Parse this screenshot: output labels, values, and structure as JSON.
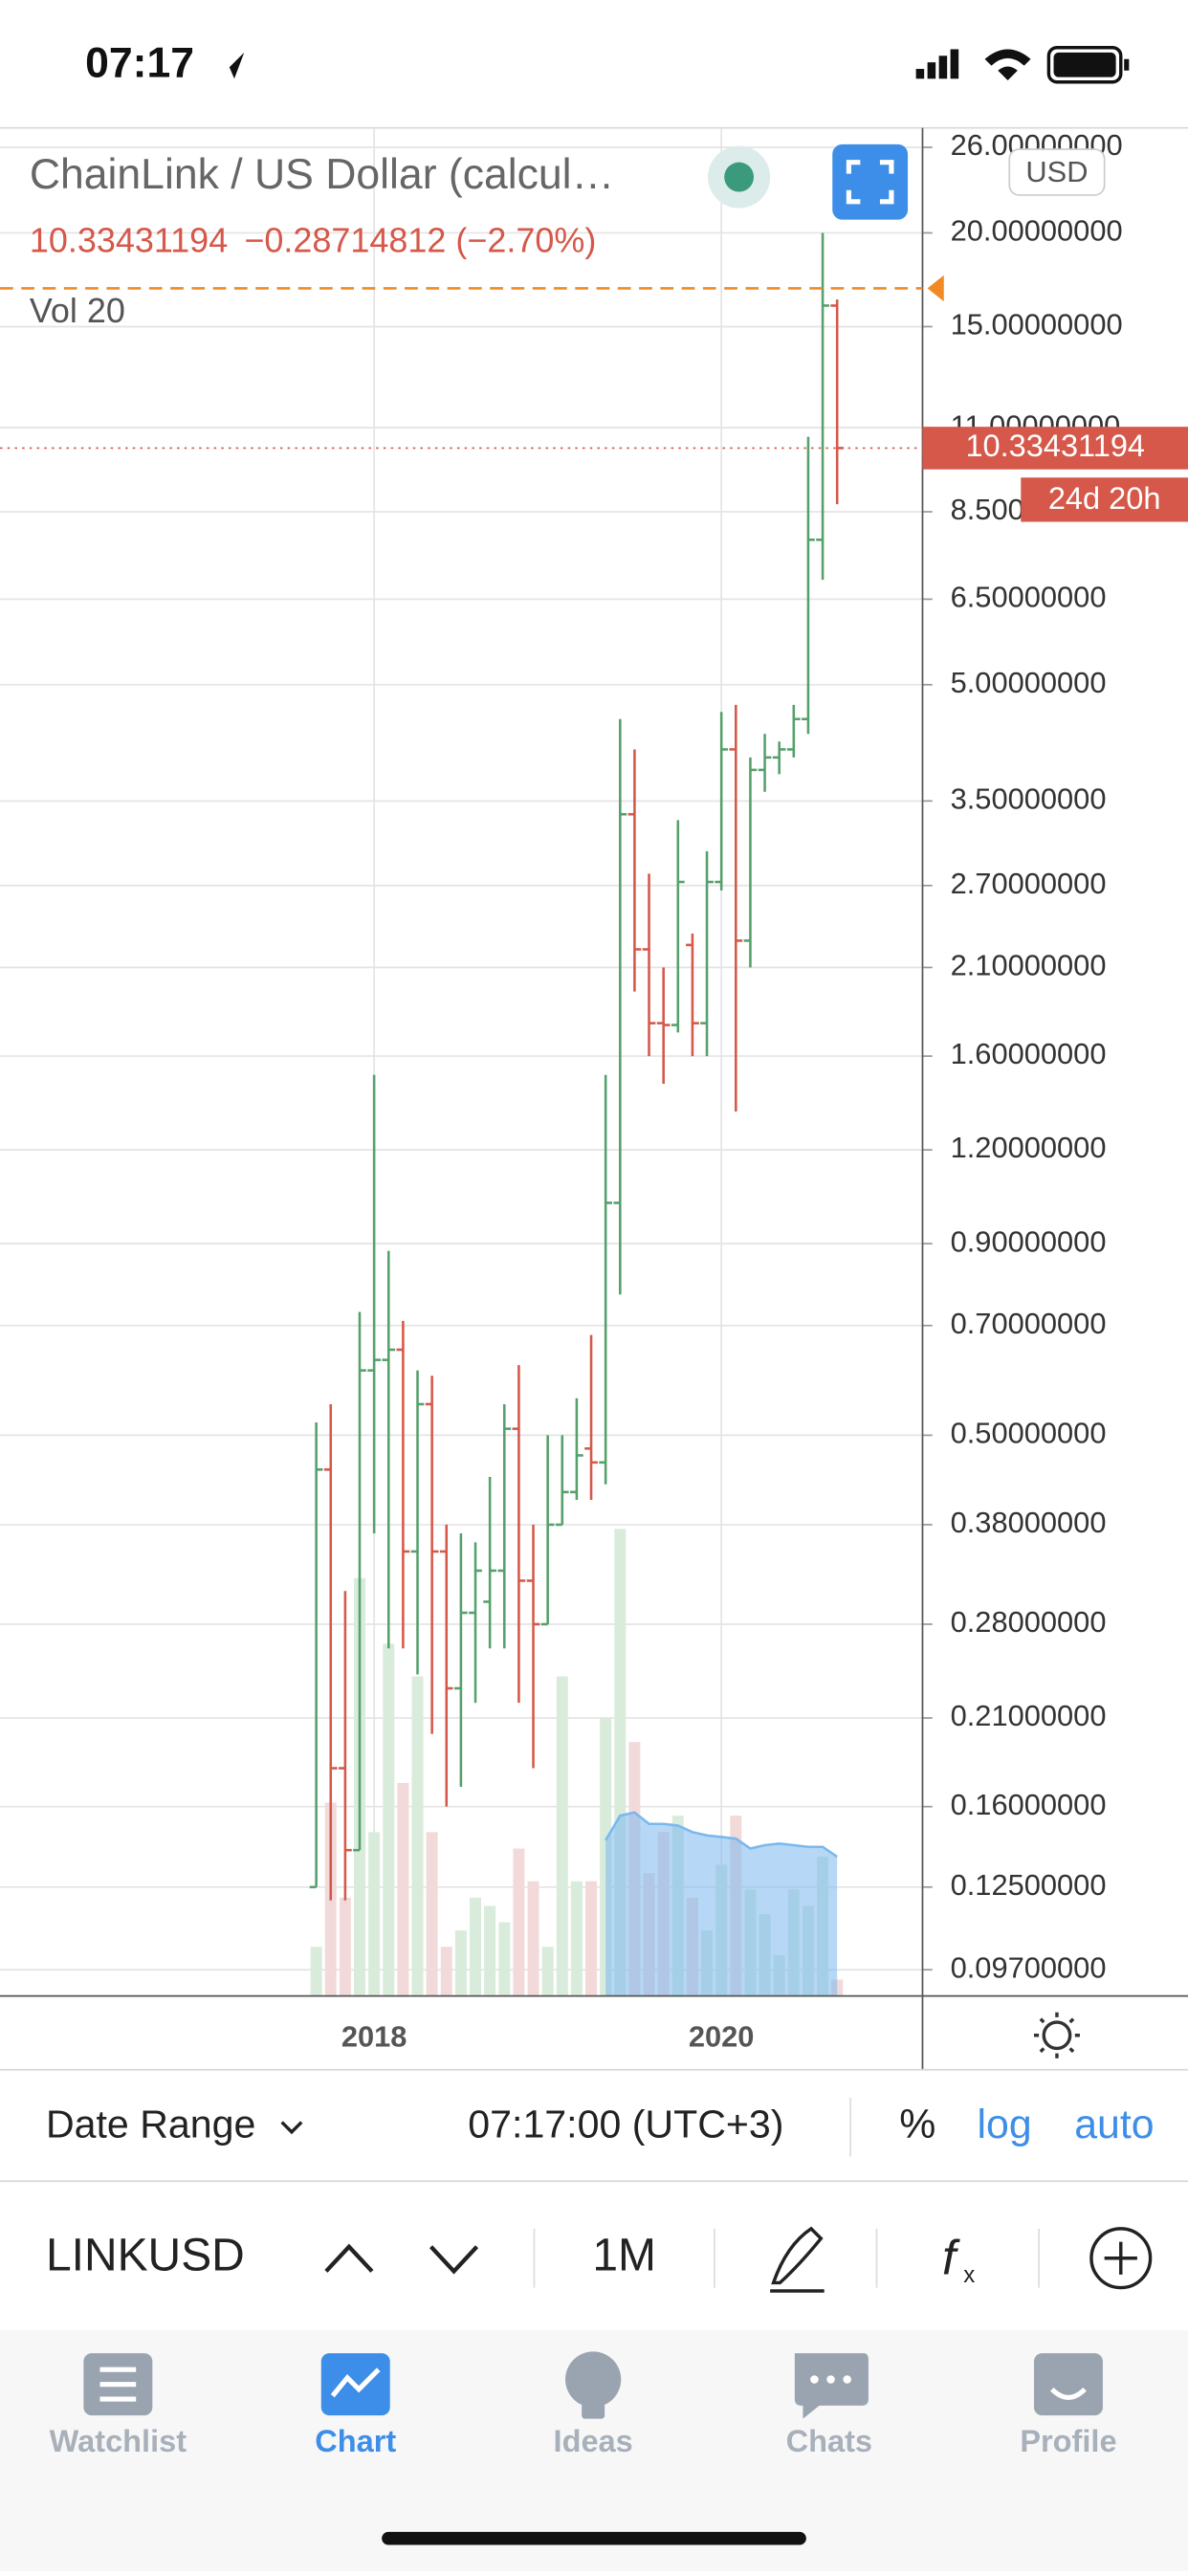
{
  "status_bar": {
    "time": "07:17"
  },
  "header": {
    "title": "ChainLink / US Dollar (calcul…",
    "price": "10.33431194",
    "change": "−0.28714812 (−2.70%)",
    "indicator": "Vol 20",
    "currency": "USD"
  },
  "chart_data": {
    "type": "ohlc",
    "categories": [
      null,
      null,
      null,
      null,
      "2018",
      null,
      null,
      null,
      null,
      null,
      null,
      null,
      null,
      null,
      null,
      null,
      null,
      null,
      null,
      null,
      null,
      null,
      null,
      null,
      null,
      null,
      null,
      null,
      "2020",
      null,
      null,
      null,
      null,
      null,
      null,
      null,
      null
    ],
    "open": [
      0.125,
      0.45,
      0.18,
      0.14,
      0.61,
      0.63,
      0.65,
      0.35,
      0.55,
      0.35,
      0.23,
      0.29,
      0.3,
      0.33,
      0.51,
      0.32,
      0.28,
      0.38,
      0.42,
      0.48,
      0.46,
      1.02,
      3.36,
      2.22,
      1.77,
      1.76,
      2.25,
      1.77,
      2.73,
      4.1,
      2.28,
      3.85,
      4.0,
      4.1,
      4.5,
      7.8,
      16.0
    ],
    "high": [
      0.52,
      0.55,
      0.31,
      0.73,
      1.51,
      0.88,
      0.71,
      0.61,
      0.6,
      0.38,
      0.37,
      0.36,
      0.44,
      0.55,
      0.62,
      0.38,
      0.5,
      0.5,
      0.56,
      0.68,
      1.51,
      4.5,
      4.1,
      2.8,
      2.1,
      3.3,
      2.33,
      3.0,
      4.6,
      4.7,
      4.0,
      4.3,
      4.2,
      4.7,
      10.7,
      20.0,
      16.3
    ],
    "low": [
      0.125,
      0.12,
      0.12,
      0.14,
      0.37,
      0.26,
      0.26,
      0.24,
      0.2,
      0.16,
      0.17,
      0.22,
      0.26,
      0.26,
      0.22,
      0.18,
      0.28,
      0.38,
      0.41,
      0.41,
      0.43,
      0.77,
      1.95,
      1.6,
      1.47,
      1.72,
      1.6,
      1.6,
      2.66,
      1.35,
      2.1,
      3.6,
      3.8,
      4.0,
      4.3,
      6.9,
      8.7
    ],
    "close": [
      0.45,
      0.18,
      0.14,
      0.61,
      0.63,
      0.65,
      0.35,
      0.55,
      0.35,
      0.23,
      0.29,
      0.33,
      0.33,
      0.51,
      0.32,
      0.28,
      0.38,
      0.42,
      0.47,
      0.46,
      1.02,
      3.36,
      2.22,
      1.77,
      1.76,
      2.73,
      1.77,
      2.73,
      4.1,
      2.28,
      3.85,
      4.0,
      4.1,
      4.5,
      7.8,
      16.0,
      10.33431194
    ],
    "up_color": "#55a06c",
    "down_color": "#d5584a",
    "volume": [
      30,
      118,
      60,
      255,
      100,
      215,
      130,
      195,
      100,
      30,
      40,
      60,
      55,
      45,
      90,
      70,
      30,
      195,
      70,
      70,
      170,
      285,
      155,
      75,
      100,
      110,
      60,
      40,
      80,
      110,
      65,
      50,
      25,
      65,
      55,
      85,
      10
    ],
    "volume_ma": [
      null,
      null,
      null,
      null,
      null,
      null,
      null,
      null,
      null,
      null,
      null,
      null,
      null,
      null,
      null,
      null,
      null,
      null,
      null,
      null,
      95,
      110,
      112,
      105,
      105,
      104,
      100,
      98,
      97,
      96,
      90,
      92,
      93,
      92,
      91,
      91,
      85
    ],
    "volume_up_color": "#d9ecdb",
    "volume_down_color": "#f2dada",
    "volume_ma_color": "#7ab8ee",
    "log_scale": true,
    "grid": true,
    "ylim": [
      0.0895,
      27.6
    ],
    "yticks": [
      {
        "value": 26,
        "label": "26.00000000"
      },
      {
        "value": 20,
        "label": "20.00000000"
      },
      {
        "value": 15,
        "label": "15.00000000"
      },
      {
        "value": 11,
        "label": "11.00000000"
      },
      {
        "value": 8.5,
        "label": "8.50000000"
      },
      {
        "value": 6.5,
        "label": "6.50000000"
      },
      {
        "value": 5,
        "label": "5.00000000"
      },
      {
        "value": 3.5,
        "label": "3.50000000"
      },
      {
        "value": 2.7,
        "label": "2.70000000"
      },
      {
        "value": 2.1,
        "label": "2.10000000"
      },
      {
        "value": 1.6,
        "label": "1.60000000"
      },
      {
        "value": 1.2,
        "label": "1.20000000"
      },
      {
        "value": 0.9,
        "label": "0.90000000"
      },
      {
        "value": 0.7,
        "label": "0.70000000"
      },
      {
        "value": 0.5,
        "label": "0.50000000"
      },
      {
        "value": 0.38,
        "label": "0.38000000"
      },
      {
        "value": 0.28,
        "label": "0.28000000"
      },
      {
        "value": 0.21,
        "label": "0.21000000"
      },
      {
        "value": 0.16,
        "label": "0.16000000"
      },
      {
        "value": 0.125,
        "label": "0.12500000"
      },
      {
        "value": 0.097,
        "label": "0.09700000"
      }
    ],
    "last_price": 10.33431194,
    "countdown": "24d 20h",
    "horizontal_line": 16.87
  },
  "controls": {
    "date_range": "Date Range",
    "time": "07:17:00 (UTC+3)",
    "percent": "%",
    "log": "log",
    "auto": "auto"
  },
  "toolbar": {
    "symbol": "LINKUSD",
    "interval": "1M"
  },
  "tabs": [
    "Watchlist",
    "Chart",
    "Ideas",
    "Chats",
    "Profile"
  ]
}
